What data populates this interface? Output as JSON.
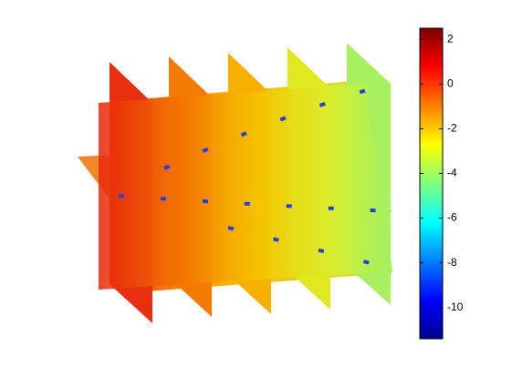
{
  "chart_data": {
    "type": "slice",
    "colormap": "jet",
    "ylim": [
      -11.4,
      2.5
    ],
    "yticks": [
      2,
      0,
      -2,
      -4,
      -6,
      -8,
      -10
    ]
  }
}
